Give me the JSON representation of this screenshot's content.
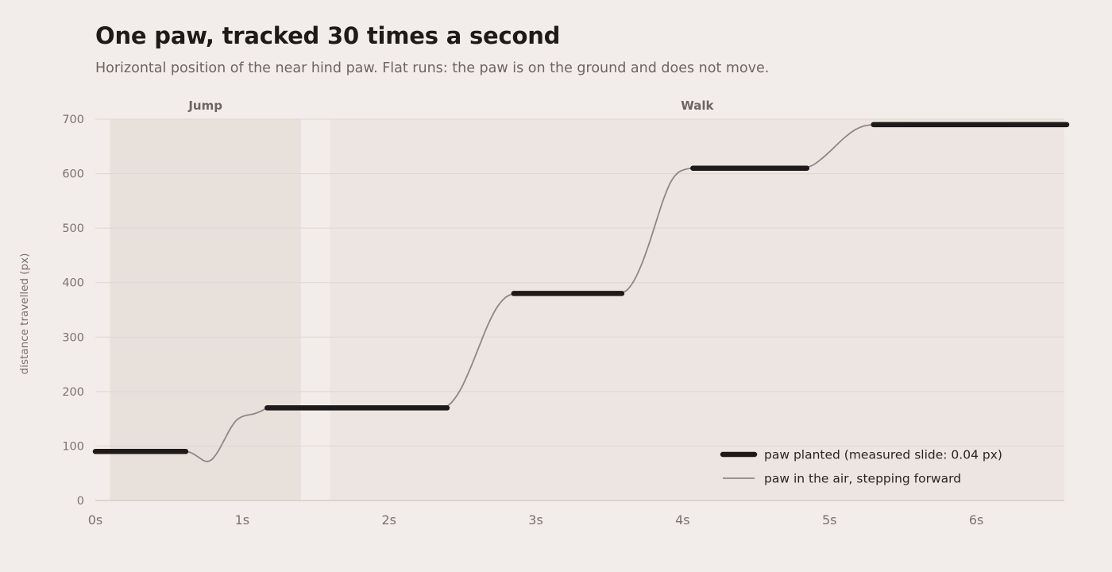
{
  "title": "One paw, tracked 30 times a second",
  "subtitle": "Horizontal position of the near hind paw. Flat runs: the paw is on the ground and does not move.",
  "colors": {
    "background": "#f2edea",
    "jump_band": "#e8e0db",
    "walk_band": "#ede5e1",
    "planted": "#1e1a1a",
    "air": "#8f8686",
    "grid": "#ddd6d2"
  },
  "chart_data": {
    "type": "line",
    "title": "One paw, tracked 30 times a second",
    "subtitle": "Horizontal position of the near hind paw. Flat runs: the paw is on the ground and does not move.",
    "xlabel": "",
    "ylabel": "distance travelled (px)",
    "xlim": [
      0,
      6.6
    ],
    "ylim": [
      0,
      700
    ],
    "x_ticks": [
      0,
      1,
      2,
      3,
      4,
      5,
      6
    ],
    "x_tick_labels": [
      "0s",
      "1s",
      "2s",
      "3s",
      "4s",
      "5s",
      "6s"
    ],
    "y_ticks": [
      0,
      100,
      200,
      300,
      400,
      500,
      600,
      700
    ],
    "y_tick_labels": [
      "0",
      "100",
      "200",
      "300",
      "400",
      "500",
      "600",
      "700"
    ],
    "grid": true,
    "legend_position": "bottom-right",
    "phases": [
      {
        "label": "Jump",
        "start": 0.1,
        "end": 1.4
      },
      {
        "label": "Walk",
        "start": 1.6,
        "end": 6.6
      }
    ],
    "series": [
      {
        "name": "paw planted (measured slide: 0.04 px)",
        "style": "thick",
        "segments": [
          [
            [
              0.0,
              90
            ],
            [
              0.6,
              90
            ]
          ],
          [
            [
              1.17,
              170
            ],
            [
              2.38,
              170
            ]
          ],
          [
            [
              2.85,
              380
            ],
            [
              3.57,
              380
            ]
          ],
          [
            [
              4.07,
              610
            ],
            [
              4.83,
              610
            ]
          ],
          [
            [
              5.3,
              690
            ],
            [
              6.6,
              690
            ]
          ]
        ]
      },
      {
        "name": "paw in the air, stepping forward",
        "style": "thin",
        "segments": [
          [
            [
              0.6,
              90
            ],
            [
              0.65,
              88
            ],
            [
              0.7,
              80
            ],
            [
              0.74,
              73
            ],
            [
              0.77,
              72
            ],
            [
              0.8,
              77
            ],
            [
              0.84,
              92
            ],
            [
              0.88,
              112
            ],
            [
              0.92,
              132
            ],
            [
              0.96,
              147
            ],
            [
              1.0,
              154
            ],
            [
              1.04,
              157
            ],
            [
              1.08,
              159
            ],
            [
              1.12,
              163
            ],
            [
              1.17,
              170
            ]
          ],
          [
            [
              2.38,
              170
            ],
            [
              2.43,
              181
            ],
            [
              2.49,
              205
            ],
            [
              2.55,
              240
            ],
            [
              2.61,
              280
            ],
            [
              2.67,
              320
            ],
            [
              2.73,
              352
            ],
            [
              2.79,
              372
            ],
            [
              2.85,
              380
            ]
          ],
          [
            [
              3.57,
              380
            ],
            [
              3.62,
              386
            ],
            [
              3.67,
              404
            ],
            [
              3.72,
              433
            ],
            [
              3.77,
              470
            ],
            [
              3.82,
              512
            ],
            [
              3.87,
              553
            ],
            [
              3.92,
              585
            ],
            [
              3.97,
              602
            ],
            [
              4.02,
              608
            ],
            [
              4.07,
              610
            ]
          ],
          [
            [
              4.83,
              610
            ],
            [
              4.89,
              616
            ],
            [
              4.95,
              628
            ],
            [
              5.02,
              645
            ],
            [
              5.09,
              663
            ],
            [
              5.16,
              678
            ],
            [
              5.23,
              687
            ],
            [
              5.3,
              690
            ]
          ]
        ]
      }
    ]
  }
}
